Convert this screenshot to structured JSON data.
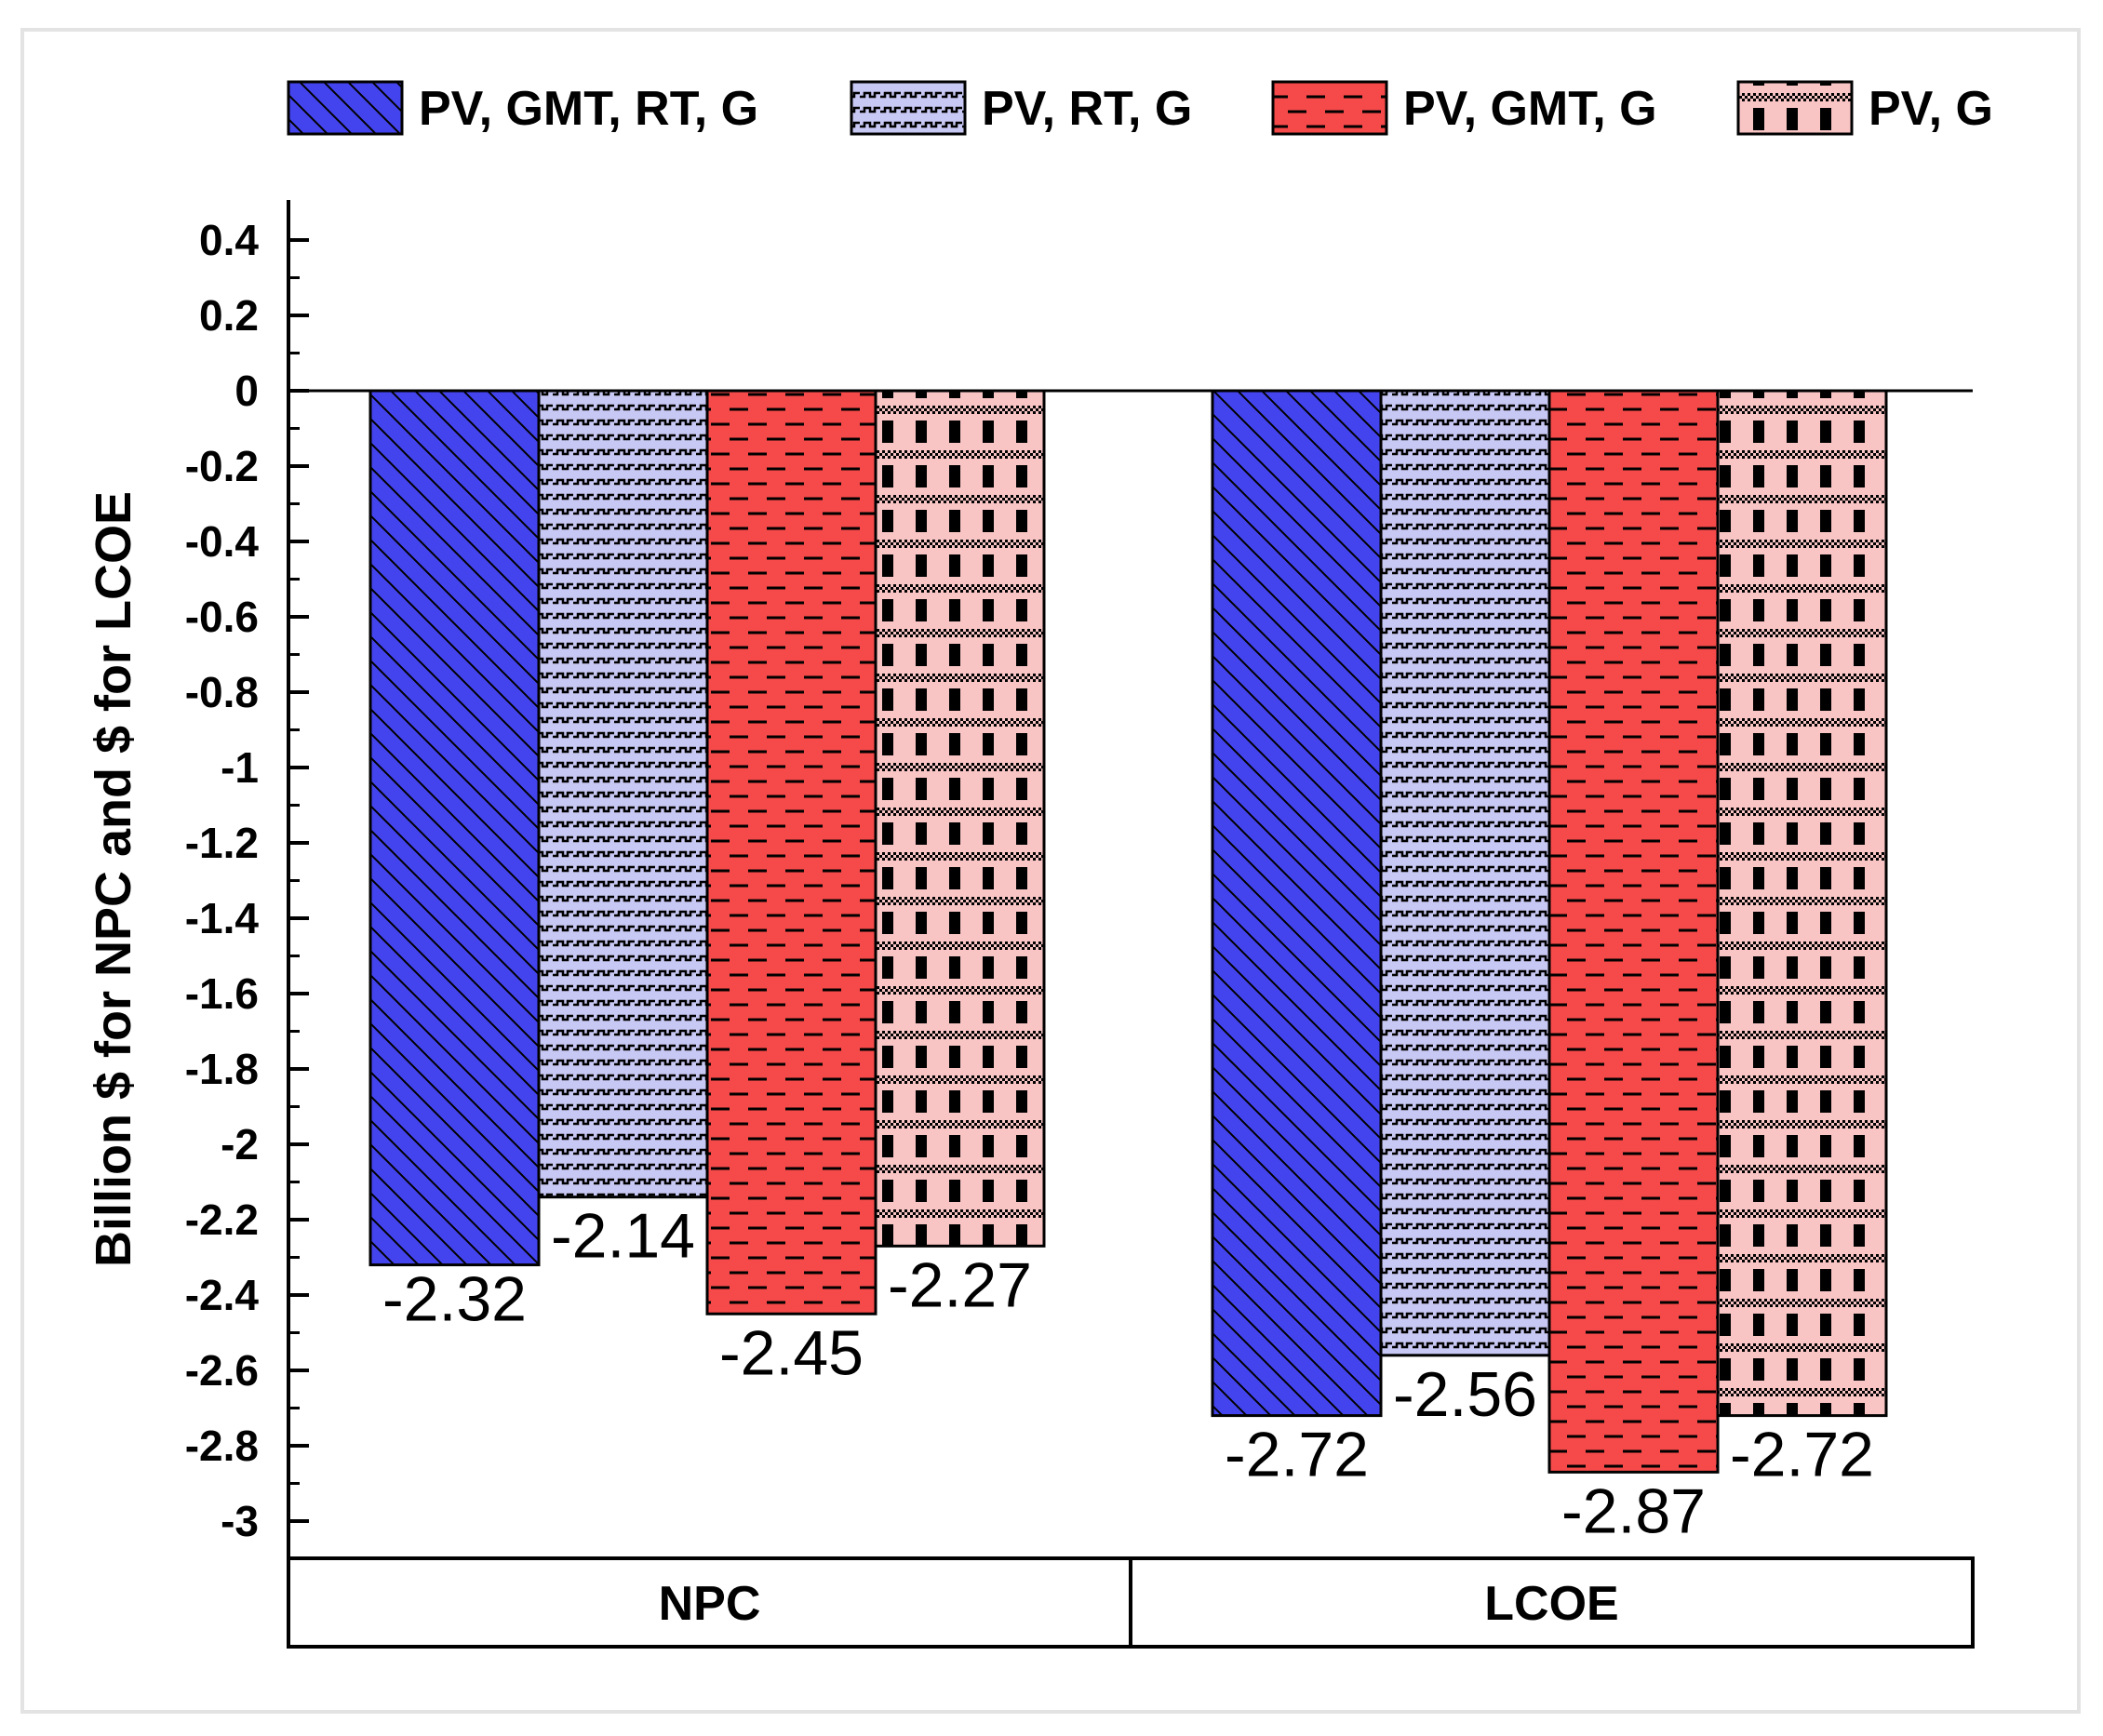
{
  "chart_data": {
    "type": "bar",
    "categories": [
      "NPC",
      "LCOE"
    ],
    "series": [
      {
        "name": "PV, GMT, RT, G",
        "values": [
          -2.32,
          -2.72
        ],
        "labels": [
          "-2.32",
          "-2.72"
        ],
        "color": "#4444ee",
        "pattern": "diagonal"
      },
      {
        "name": "PV, RT, G",
        "values": [
          -2.14,
          -2.56
        ],
        "labels": [
          "-2.14",
          "-2.56"
        ],
        "color": "#c8c8f4",
        "pattern": "wave"
      },
      {
        "name": "PV, GMT, G",
        "values": [
          -2.45,
          -2.87
        ],
        "labels": [
          "-2.45",
          "-2.87"
        ],
        "color": "#f64a4a",
        "pattern": "dash"
      },
      {
        "name": "PV, G",
        "values": [
          -2.27,
          -2.72
        ],
        "labels": [
          "-2.27",
          "-2.72"
        ],
        "color": "#f8c4c4",
        "pattern": "check"
      }
    ],
    "ylabel": "Billion $ for NPC and $ for LCOE",
    "xlabel": "",
    "ylim": [
      -3.1,
      0.5
    ],
    "yticks": [
      0.4,
      0.2,
      0,
      -0.2,
      -0.4,
      -0.6,
      -0.8,
      -1,
      -1.2,
      -1.4,
      -1.6,
      -1.8,
      -2,
      -2.2,
      -2.4,
      -2.6,
      -2.8,
      -3
    ],
    "ytick_labels": [
      "0.4",
      "0.2",
      "0",
      "-0.2",
      "-0.4",
      "-0.6",
      "-0.8",
      "-1",
      "-1.2",
      "-1.4",
      "-1.6",
      "-1.8",
      "-2",
      "-2.2",
      "-2.4",
      "-2.6",
      "-2.8",
      "-3"
    ],
    "legend_position": "top",
    "grid": false
  }
}
